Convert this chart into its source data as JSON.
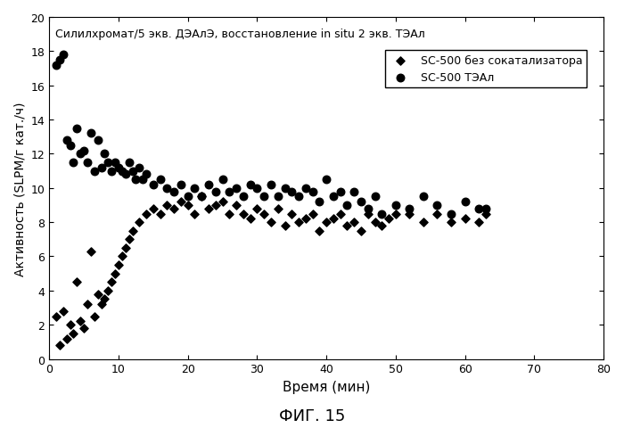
{
  "title": "Силилхромат/5 экв. ДЭАлЭ, восстановление in situ 2 экв. ТЭАл",
  "xlabel": "Время (мин)",
  "ylabel": "Активность (SLPM/г кат./ч)",
  "fig_label": "ФИГ. 15",
  "xlim": [
    0,
    80
  ],
  "ylim": [
    0,
    20
  ],
  "xticks": [
    0,
    10,
    20,
    30,
    40,
    50,
    60,
    70,
    80
  ],
  "yticks": [
    0,
    2,
    4,
    6,
    8,
    10,
    12,
    14,
    16,
    18,
    20
  ],
  "legend_entries": [
    "SC-500 без сокатализатора",
    "SC-500 ТЭАл"
  ],
  "series1_x": [
    1,
    1.5,
    2,
    2.5,
    3,
    3.5,
    4,
    4.5,
    5,
    5.5,
    6,
    6.5,
    7,
    7.5,
    8,
    8.5,
    9,
    9.5,
    10,
    10.5,
    11,
    11.5,
    12,
    13,
    14,
    15,
    16,
    17,
    18,
    19,
    20,
    21,
    22,
    23,
    24,
    25,
    26,
    27,
    28,
    29,
    30,
    31,
    32,
    33,
    34,
    35,
    36,
    37,
    38,
    39,
    40,
    41,
    42,
    43,
    44,
    45,
    46,
    47,
    48,
    49,
    50,
    52,
    54,
    56,
    58,
    60,
    62,
    63
  ],
  "series1_y": [
    2.5,
    0.8,
    2.8,
    1.2,
    2.0,
    1.5,
    4.5,
    2.2,
    1.8,
    3.2,
    6.3,
    2.5,
    3.8,
    3.2,
    3.5,
    4.0,
    4.5,
    5.0,
    5.5,
    6.0,
    6.5,
    7.0,
    7.5,
    8.0,
    8.5,
    8.8,
    8.5,
    9.0,
    8.8,
    9.2,
    9.0,
    8.5,
    9.5,
    8.8,
    9.0,
    9.2,
    8.5,
    9.0,
    8.5,
    8.2,
    8.8,
    8.5,
    8.0,
    8.8,
    7.8,
    8.5,
    8.0,
    8.2,
    8.5,
    7.5,
    8.0,
    8.2,
    8.5,
    7.8,
    8.0,
    7.5,
    8.5,
    8.0,
    7.8,
    8.2,
    8.5,
    8.5,
    8.0,
    8.5,
    8.0,
    8.2,
    8.0,
    8.5
  ],
  "series2_x": [
    1,
    1.5,
    2,
    2.5,
    3,
    3.5,
    4,
    4.5,
    5,
    5.5,
    6,
    6.5,
    7,
    7.5,
    8,
    8.5,
    9,
    9.5,
    10,
    10.5,
    11,
    11.5,
    12,
    12.5,
    13,
    13.5,
    14,
    15,
    16,
    17,
    18,
    19,
    20,
    21,
    22,
    23,
    24,
    25,
    26,
    27,
    28,
    29,
    30,
    31,
    32,
    33,
    34,
    35,
    36,
    37,
    38,
    39,
    40,
    41,
    42,
    43,
    44,
    45,
    46,
    47,
    48,
    50,
    52,
    54,
    56,
    58,
    60,
    62,
    63
  ],
  "series2_y": [
    17.2,
    17.5,
    17.8,
    12.8,
    12.5,
    11.5,
    13.5,
    12.0,
    12.2,
    11.5,
    13.2,
    11.0,
    12.8,
    11.2,
    12.0,
    11.5,
    11.0,
    11.5,
    11.2,
    11.0,
    10.8,
    11.5,
    11.0,
    10.5,
    11.2,
    10.5,
    10.8,
    10.2,
    10.5,
    10.0,
    9.8,
    10.2,
    9.5,
    10.0,
    9.5,
    10.2,
    9.8,
    10.5,
    9.8,
    10.0,
    9.5,
    10.2,
    10.0,
    9.5,
    10.2,
    9.5,
    10.0,
    9.8,
    9.5,
    10.0,
    9.8,
    9.2,
    10.5,
    9.5,
    9.8,
    9.0,
    9.8,
    9.2,
    8.8,
    9.5,
    8.5,
    9.0,
    8.8,
    9.5,
    9.0,
    8.5,
    9.2,
    8.8,
    8.8
  ],
  "color1": "#000000",
  "color2": "#000000",
  "marker1": "D",
  "marker2": "o",
  "markersize1": 22,
  "markersize2": 38,
  "bg_color": "#ffffff"
}
